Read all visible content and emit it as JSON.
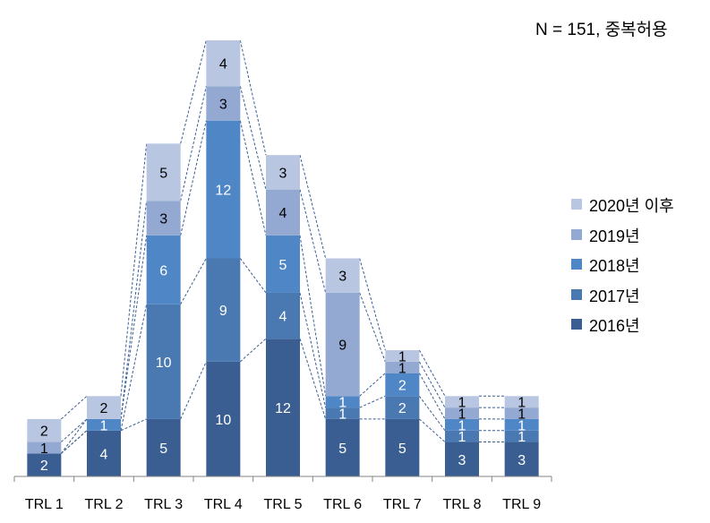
{
  "chart_data": {
    "type": "bar",
    "stacked": true,
    "note": "N = 151, 중복허용",
    "categories": [
      "TRL 1",
      "TRL 2",
      "TRL 3",
      "TRL 4",
      "TRL 5",
      "TRL 6",
      "TRL 7",
      "TRL 8",
      "TRL 9"
    ],
    "series": [
      {
        "name": "2016년",
        "color": "#3a5e91",
        "values": [
          2,
          4,
          5,
          10,
          12,
          5,
          5,
          3,
          3
        ]
      },
      {
        "name": "2017년",
        "color": "#4a78b0",
        "values": [
          0,
          0,
          10,
          9,
          4,
          1,
          2,
          1,
          1
        ]
      },
      {
        "name": "2018년",
        "color": "#4f86c6",
        "values": [
          0,
          1,
          6,
          12,
          5,
          1,
          2,
          1,
          1
        ]
      },
      {
        "name": "2019년",
        "color": "#93a9d1",
        "values": [
          1,
          0,
          3,
          3,
          4,
          9,
          1,
          1,
          1
        ]
      },
      {
        "name": "2020년 이후",
        "color": "#b9c6e2",
        "values": [
          2,
          2,
          5,
          4,
          3,
          3,
          1,
          1,
          1
        ]
      }
    ],
    "legend_position": "right",
    "xlabel": "",
    "ylabel": "",
    "ylim": [
      0,
      38
    ],
    "connector_lines": "dashed",
    "grid": false
  }
}
